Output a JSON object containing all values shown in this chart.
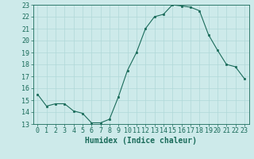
{
  "xlabel": "Humidex (Indice chaleur)",
  "x": [
    0,
    1,
    2,
    3,
    4,
    5,
    6,
    7,
    8,
    9,
    10,
    11,
    12,
    13,
    14,
    15,
    16,
    17,
    18,
    19,
    20,
    21,
    22,
    23
  ],
  "y": [
    15.5,
    14.5,
    14.7,
    14.7,
    14.1,
    13.9,
    13.1,
    13.1,
    13.4,
    15.3,
    17.5,
    19.0,
    21.0,
    22.0,
    22.2,
    23.0,
    22.9,
    22.8,
    22.5,
    20.5,
    19.2,
    18.0,
    17.8,
    16.8
  ],
  "line_color": "#1a6b5a",
  "marker": "s",
  "marker_size": 2.0,
  "bg_color": "#cdeaea",
  "grid_color": "#b0d8d8",
  "ylim": [
    13,
    23
  ],
  "xlim": [
    -0.5,
    23.5
  ],
  "yticks": [
    13,
    14,
    15,
    16,
    17,
    18,
    19,
    20,
    21,
    22,
    23
  ],
  "xticks": [
    0,
    1,
    2,
    3,
    4,
    5,
    6,
    7,
    8,
    9,
    10,
    11,
    12,
    13,
    14,
    15,
    16,
    17,
    18,
    19,
    20,
    21,
    22,
    23
  ],
  "tick_color": "#1a6b5a",
  "label_color": "#1a6b5a",
  "xlabel_fontsize": 7,
  "tick_fontsize": 6
}
